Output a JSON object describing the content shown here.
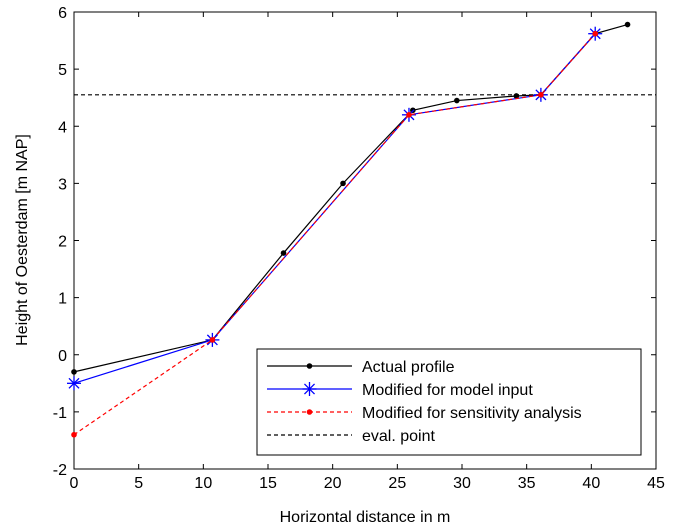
{
  "chart_data": {
    "type": "line",
    "xlabel": "Horizontal distance in m",
    "ylabel": "Height of Oesterdam [m NAP]",
    "xlim": [
      0,
      45
    ],
    "ylim": [
      -2,
      6
    ],
    "xticks": [
      0,
      5,
      10,
      15,
      20,
      25,
      30,
      35,
      40,
      45
    ],
    "yticks": [
      -2,
      -1,
      0,
      1,
      2,
      3,
      4,
      5,
      6
    ],
    "grid": false,
    "legend_position": "bottom-right",
    "series": [
      {
        "name": "Actual profile",
        "color": "#000000",
        "line": "solid",
        "marker": "dot",
        "x": [
          0,
          10.7,
          16.2,
          20.8,
          26.2,
          29.6,
          34.2,
          36.1,
          40.3,
          42.8
        ],
        "y": [
          -0.3,
          0.26,
          1.78,
          3.0,
          4.28,
          4.45,
          4.53,
          4.55,
          5.62,
          5.78
        ]
      },
      {
        "name": "Modified for model input",
        "color": "#0000ff",
        "line": "solid",
        "marker": "asterisk",
        "x": [
          0,
          10.7,
          25.9,
          36.1,
          40.3
        ],
        "y": [
          -0.5,
          0.26,
          4.2,
          4.55,
          5.62
        ]
      },
      {
        "name": "Modified for sensitivity analysis",
        "color": "#ff0000",
        "line": "dashed",
        "marker": "dot",
        "x": [
          0,
          10.7,
          25.9,
          36.1,
          40.3
        ],
        "y": [
          -1.4,
          0.26,
          4.2,
          4.55,
          5.62
        ]
      },
      {
        "name": "eval. point",
        "color": "#000000",
        "line": "dashed",
        "marker": "none",
        "x": [
          0,
          45
        ],
        "y": [
          4.55,
          4.55
        ]
      }
    ]
  }
}
